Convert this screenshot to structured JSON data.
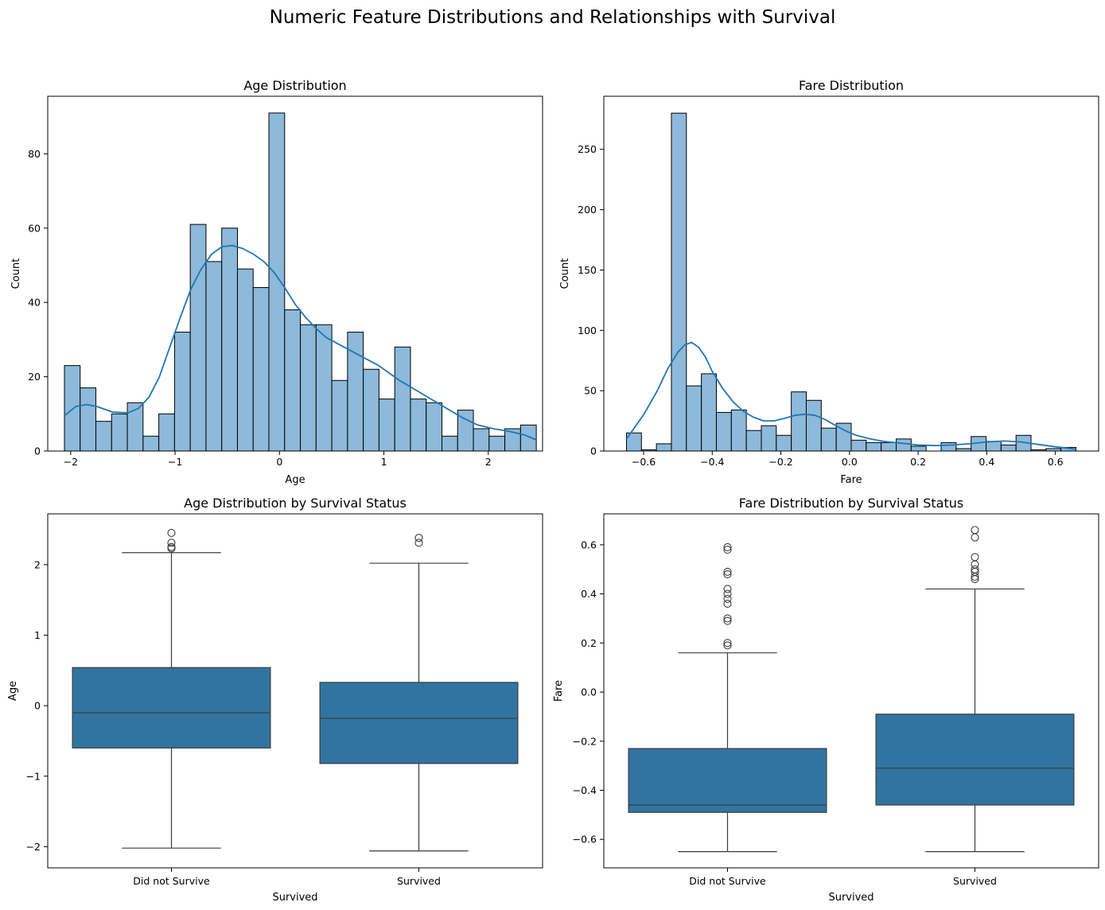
{
  "figure": {
    "title": "Numeric Feature Distributions and Relationships with Survival"
  },
  "colors": {
    "hist_fill": "#8db9da",
    "hist_edge": "#000000",
    "kde_line": "#1f77b4",
    "box_fill": "#3274a1",
    "box_line": "#3c3c3c",
    "axes": "#000000"
  },
  "chart_data": [
    {
      "type": "bar",
      "subtype": "histogram",
      "title": "Age Distribution",
      "xlabel": "Age",
      "ylabel": "Count",
      "xlim": [
        -2.22,
        2.52
      ],
      "ylim": [
        0,
        95.5
      ],
      "xticks": [
        -2,
        -1,
        0,
        1,
        2
      ],
      "xtick_labels": [
        "−2",
        "−1",
        "0",
        "1",
        "2"
      ],
      "yticks": [
        0,
        20,
        40,
        60,
        80
      ],
      "ytick_labels": [
        "0",
        "20",
        "40",
        "60",
        "80"
      ],
      "bin_start": -2.06,
      "bin_end": 2.46,
      "values": [
        23,
        17,
        8,
        10,
        13,
        4,
        10,
        32,
        61,
        51,
        60,
        49,
        44,
        91,
        38,
        34,
        34,
        19,
        32,
        22,
        14,
        28,
        14,
        13,
        4,
        11,
        6,
        4,
        6,
        7
      ],
      "kde": {
        "x": [
          -2.06,
          -1.95,
          -1.85,
          -1.75,
          -1.6,
          -1.45,
          -1.35,
          -1.25,
          -1.15,
          -1.05,
          -0.95,
          -0.85,
          -0.75,
          -0.65,
          -0.55,
          -0.45,
          -0.35,
          -0.25,
          -0.15,
          -0.05,
          0.05,
          0.15,
          0.25,
          0.35,
          0.45,
          0.55,
          0.65,
          0.75,
          0.85,
          0.95,
          1.05,
          1.15,
          1.3,
          1.45,
          1.6,
          1.75,
          1.9,
          2.05,
          2.2,
          2.35,
          2.46
        ],
        "y": [
          9.5,
          12,
          12.5,
          12,
          10.5,
          10.3,
          11.5,
          14.5,
          20,
          28,
          36,
          43.5,
          49,
          53,
          55,
          55.3,
          54.5,
          53,
          51,
          48,
          44,
          39.5,
          36,
          33,
          30.5,
          29,
          27.5,
          26,
          24.5,
          23,
          21,
          19,
          16.5,
          14,
          11.5,
          9,
          7,
          6,
          5.3,
          4.3,
          3
        ]
      }
    },
    {
      "type": "bar",
      "subtype": "histogram",
      "title": "Fare Distribution",
      "xlabel": "Fare",
      "ylabel": "Count",
      "xlim": [
        -0.716,
        0.726
      ],
      "ylim": [
        0,
        294
      ],
      "xticks": [
        -0.6,
        -0.4,
        -0.2,
        0.0,
        0.2,
        0.4,
        0.6
      ],
      "xtick_labels": [
        "−0.6",
        "−0.4",
        "−0.2",
        "0.0",
        "0.2",
        "0.4",
        "0.6"
      ],
      "yticks": [
        0,
        50,
        100,
        150,
        200,
        250
      ],
      "ytick_labels": [
        "0",
        "50",
        "100",
        "150",
        "200",
        "250"
      ],
      "bin_start": -0.65,
      "bin_end": 0.66,
      "values": [
        15,
        1,
        6,
        280,
        54,
        64,
        32,
        34,
        17,
        21,
        13,
        49,
        42,
        19,
        23,
        9,
        7,
        7,
        10,
        4,
        0,
        7,
        2,
        12,
        8,
        5,
        13,
        1,
        2,
        3
      ],
      "kde": {
        "x": [
          -0.65,
          -0.6,
          -0.56,
          -0.53,
          -0.5,
          -0.48,
          -0.46,
          -0.44,
          -0.42,
          -0.4,
          -0.37,
          -0.34,
          -0.31,
          -0.28,
          -0.25,
          -0.22,
          -0.19,
          -0.16,
          -0.13,
          -0.1,
          -0.07,
          -0.04,
          -0.01,
          0.02,
          0.06,
          0.1,
          0.15,
          0.2,
          0.25,
          0.3,
          0.35,
          0.4,
          0.45,
          0.5,
          0.55,
          0.6,
          0.66
        ],
        "y": [
          10,
          30,
          50,
          68,
          82,
          88,
          90,
          86,
          78,
          66,
          52,
          41,
          33,
          28,
          25,
          25,
          27,
          29.5,
          30.5,
          29.5,
          26,
          21,
          16.5,
          13,
          10,
          8,
          6.5,
          5,
          4.5,
          5,
          6,
          7.5,
          8.3,
          7.5,
          5.5,
          3.5,
          1.5
        ]
      }
    },
    {
      "type": "box",
      "title": "Age Distribution by Survival Status",
      "xlabel": "Survived",
      "ylabel": "Age",
      "categories": [
        "Did not Survive",
        "Survived"
      ],
      "ylim": [
        -2.3,
        2.72
      ],
      "yticks": [
        -2,
        -1,
        0,
        1,
        2
      ],
      "ytick_labels": [
        "−2",
        "−1",
        "0",
        "1",
        "2"
      ],
      "boxes": [
        {
          "whisker_low": -2.02,
          "q1": -0.6,
          "median": -0.1,
          "q3": 0.54,
          "whisker_high": 2.17,
          "outliers": [
            2.23,
            2.25,
            2.31,
            2.45
          ]
        },
        {
          "whisker_low": -2.06,
          "q1": -0.82,
          "median": -0.18,
          "q3": 0.33,
          "whisker_high": 2.02,
          "outliers": [
            2.31,
            2.38
          ]
        }
      ]
    },
    {
      "type": "box",
      "title": "Fare Distribution by Survival Status",
      "xlabel": "Survived",
      "ylabel": "Fare",
      "categories": [
        "Did not Survive",
        "Survived"
      ],
      "ylim": [
        -0.716,
        0.726
      ],
      "yticks": [
        -0.6,
        -0.4,
        -0.2,
        0.0,
        0.2,
        0.4,
        0.6
      ],
      "ytick_labels": [
        "−0.6",
        "−0.4",
        "−0.2",
        "0.0",
        "0.2",
        "0.4",
        "0.6"
      ],
      "boxes": [
        {
          "whisker_low": -0.65,
          "q1": -0.49,
          "median": -0.46,
          "q3": -0.23,
          "whisker_high": 0.16,
          "outliers": [
            0.19,
            0.2,
            0.29,
            0.3,
            0.36,
            0.38,
            0.4,
            0.42,
            0.48,
            0.49,
            0.58,
            0.59
          ]
        },
        {
          "whisker_low": -0.65,
          "q1": -0.46,
          "median": -0.31,
          "q3": -0.09,
          "whisker_high": 0.42,
          "outliers": [
            0.46,
            0.47,
            0.49,
            0.5,
            0.52,
            0.55,
            0.63,
            0.66
          ]
        }
      ]
    }
  ]
}
